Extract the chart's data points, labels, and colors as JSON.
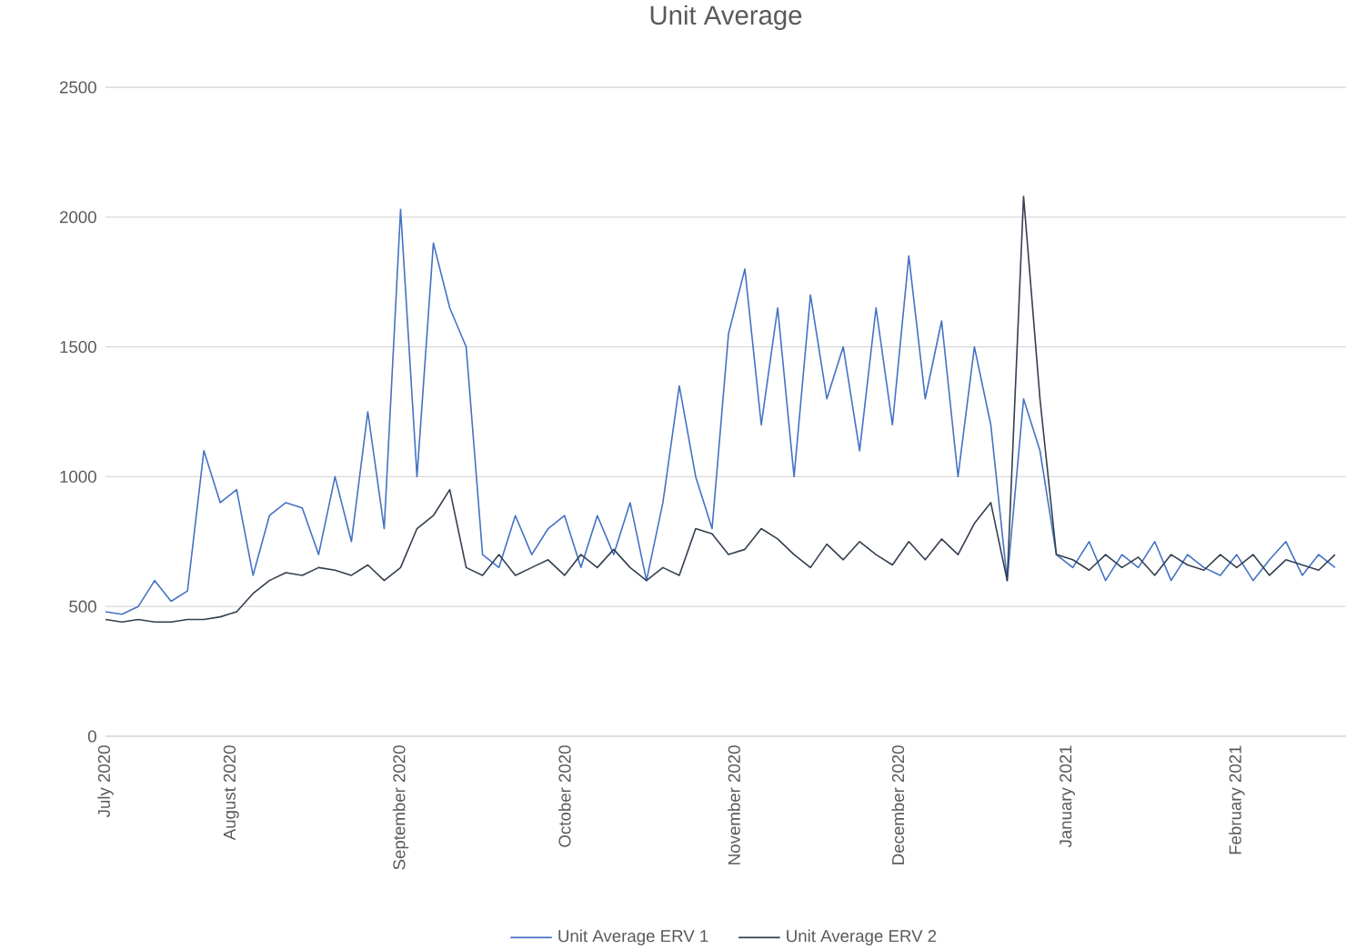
{
  "chart_data": {
    "type": "line",
    "title": "Unit Average",
    "x": [
      "2020-07-09",
      "2020-07-12",
      "2020-07-15",
      "2020-07-18",
      "2020-07-21",
      "2020-07-24",
      "2020-07-27",
      "2020-07-30",
      "2020-08-02",
      "2020-08-05",
      "2020-08-08",
      "2020-08-11",
      "2020-08-14",
      "2020-08-17",
      "2020-08-20",
      "2020-08-23",
      "2020-08-26",
      "2020-08-29",
      "2020-09-01",
      "2020-09-04",
      "2020-09-07",
      "2020-09-10",
      "2020-09-13",
      "2020-09-16",
      "2020-09-19",
      "2020-09-22",
      "2020-09-25",
      "2020-09-28",
      "2020-10-01",
      "2020-10-04",
      "2020-10-07",
      "2020-10-10",
      "2020-10-13",
      "2020-10-16",
      "2020-10-19",
      "2020-10-22",
      "2020-10-25",
      "2020-10-28",
      "2020-10-31",
      "2020-11-03",
      "2020-11-06",
      "2020-11-09",
      "2020-11-12",
      "2020-11-15",
      "2020-11-18",
      "2020-11-21",
      "2020-11-24",
      "2020-11-27",
      "2020-11-30",
      "2020-12-03",
      "2020-12-06",
      "2020-12-09",
      "2020-12-12",
      "2020-12-15",
      "2020-12-18",
      "2020-12-21",
      "2020-12-24",
      "2020-12-27",
      "2020-12-30",
      "2021-01-02",
      "2021-01-05",
      "2021-01-08",
      "2021-01-11",
      "2021-01-14",
      "2021-01-17",
      "2021-01-20",
      "2021-01-23",
      "2021-01-26",
      "2021-01-29",
      "2021-02-01",
      "2021-02-04",
      "2021-02-07",
      "2021-02-10",
      "2021-02-13",
      "2021-02-16",
      "2021-02-19"
    ],
    "series": [
      {
        "name": "Unit Average ERV 1",
        "color": "#4472c4",
        "values": [
          480,
          470,
          500,
          600,
          520,
          560,
          1100,
          900,
          950,
          620,
          850,
          900,
          880,
          700,
          1000,
          750,
          1250,
          800,
          2030,
          1000,
          1900,
          1650,
          1500,
          700,
          650,
          850,
          700,
          800,
          850,
          650,
          850,
          700,
          900,
          600,
          900,
          1350,
          1000,
          800,
          1550,
          1800,
          1200,
          1650,
          1000,
          1700,
          1300,
          1500,
          1100,
          1650,
          1200,
          1850,
          1300,
          1600,
          1000,
          1500,
          1200,
          600,
          1300,
          1100,
          700,
          650,
          750,
          600,
          700,
          650,
          750,
          600,
          700,
          650,
          620,
          700,
          600,
          680,
          750,
          620,
          700,
          650
        ]
      },
      {
        "name": "Unit Average ERV 2",
        "color": "#333f50",
        "values": [
          450,
          440,
          450,
          440,
          440,
          450,
          450,
          460,
          480,
          550,
          600,
          630,
          620,
          650,
          640,
          620,
          660,
          600,
          650,
          800,
          850,
          950,
          650,
          620,
          700,
          620,
          650,
          680,
          620,
          700,
          650,
          720,
          650,
          600,
          650,
          620,
          800,
          780,
          700,
          720,
          800,
          760,
          700,
          650,
          740,
          680,
          750,
          700,
          660,
          750,
          680,
          760,
          700,
          820,
          900,
          600,
          2080,
          1300,
          700,
          680,
          640,
          700,
          650,
          690,
          620,
          700,
          660,
          640,
          700,
          650,
          700,
          620,
          680,
          660,
          640,
          700
        ]
      }
    ],
    "xlim": [
      "2020-07-09",
      "2021-02-21"
    ],
    "xticks": [
      {
        "value": "2020-07-09",
        "label": "July 2020"
      },
      {
        "value": "2020-08-01",
        "label": "August 2020"
      },
      {
        "value": "2020-09-01",
        "label": "September 2020"
      },
      {
        "value": "2020-10-01",
        "label": "October 2020"
      },
      {
        "value": "2020-11-01",
        "label": "November 2020"
      },
      {
        "value": "2020-12-01",
        "label": "December 2020"
      },
      {
        "value": "2021-01-01",
        "label": "January 2021"
      },
      {
        "value": "2021-02-01",
        "label": "February 2021"
      }
    ],
    "ylim": [
      0,
      2500
    ],
    "yticks": [
      0,
      500,
      1000,
      1500,
      2000,
      2500
    ],
    "grid": "y",
    "legend": "bottom",
    "marker": "none",
    "line_style": "solid"
  }
}
